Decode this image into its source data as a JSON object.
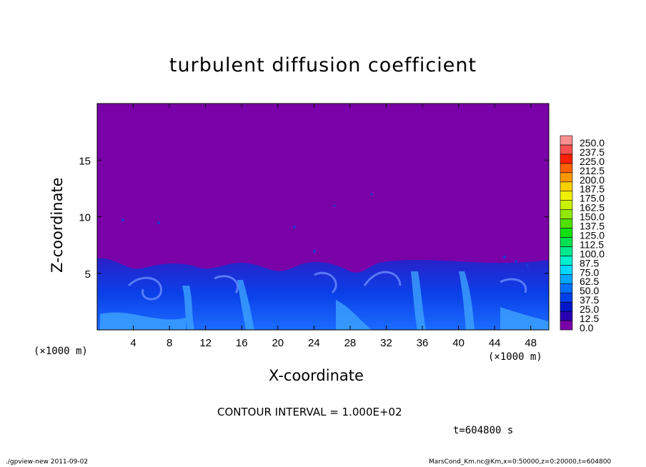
{
  "chart_data": {
    "type": "heatmap",
    "title": "turbulent diffusion coefficient",
    "xlabel": "X-coordinate",
    "ylabel": "Z-coordinate",
    "x_unit_label": "(×1000 m)",
    "xlim": [
      0,
      50
    ],
    "ylim": [
      0,
      20
    ],
    "x_ticks": [
      "4",
      "8",
      "12",
      "16",
      "20",
      "24",
      "28",
      "32",
      "36",
      "40",
      "44",
      "48"
    ],
    "y_ticks": [
      "5",
      "10",
      "15"
    ],
    "colorbar": {
      "levels": [
        "0.0",
        "12.5",
        "25.0",
        "37.5",
        "50.0",
        "62.5",
        "75.0",
        "87.5",
        "100.0",
        "112.5",
        "125.0",
        "137.5",
        "150.0",
        "162.5",
        "175.0",
        "187.5",
        "200.0",
        "212.5",
        "225.0",
        "237.5",
        "250.0"
      ],
      "colors": [
        "#7a00a8",
        "#2a00b0",
        "#0018c8",
        "#0040e8",
        "#0070ff",
        "#00a8ff",
        "#00d8ff",
        "#00f0d0",
        "#00e890",
        "#00e050",
        "#10e010",
        "#50e000",
        "#90e800",
        "#c8f000",
        "#f0f000",
        "#f8d000",
        "#ff9800",
        "#ff6000",
        "#ff2000",
        "#f85050",
        "#f89090"
      ],
      "placement": "right"
    },
    "background_value_color": "#7a00a8",
    "contour_interval": "CONTOUR INTERVAL = 1.000E+02",
    "time": "t=604800 s"
  },
  "footer": {
    "left": "./gpview-new 2011-09-02",
    "right": "MarsCond_Km.nc@Km,x=0:50000,z=0:20000,t=604800"
  }
}
